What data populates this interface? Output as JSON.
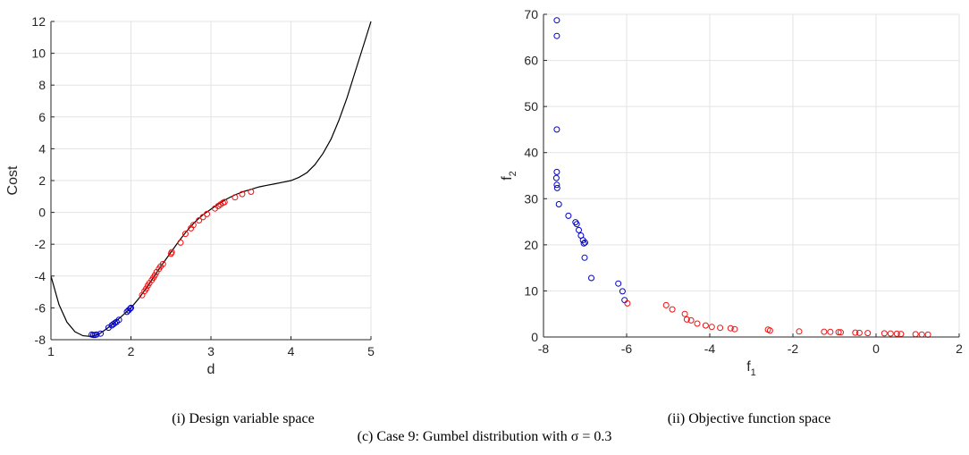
{
  "captions": {
    "left": "(i) Design variable space",
    "right": "(ii) Objective function space",
    "main": "(c) Case 9: Gumbel distribution with σ = 0.3"
  },
  "colors": {
    "blue": "#0000cc",
    "red": "#ee1111",
    "curve": "#000000",
    "grid": "#e3e3e3"
  },
  "chart_data": [
    {
      "type": "line",
      "title": "",
      "xlabel": "d",
      "ylabel": "Cost",
      "xlim": [
        1,
        5
      ],
      "ylim": [
        -8,
        12
      ],
      "xticks": [
        1,
        2,
        3,
        4,
        5
      ],
      "yticks": [
        -8,
        -6,
        -4,
        -2,
        0,
        2,
        4,
        6,
        8,
        10,
        12
      ],
      "grid": true,
      "curve": {
        "x": [
          1.0,
          1.1,
          1.2,
          1.3,
          1.4,
          1.5,
          1.6,
          1.7,
          1.8,
          1.9,
          2.0,
          2.1,
          2.2,
          2.3,
          2.4,
          2.5,
          2.6,
          2.7,
          2.8,
          2.9,
          3.0,
          3.1,
          3.2,
          3.3,
          3.4,
          3.5,
          3.6,
          3.7,
          3.8,
          3.9,
          4.0,
          4.1,
          4.2,
          4.3,
          4.4,
          4.5,
          4.6,
          4.7,
          4.8,
          4.9,
          5.0
        ],
        "y": [
          -4.0,
          -5.8,
          -6.9,
          -7.5,
          -7.75,
          -7.8,
          -7.65,
          -7.3,
          -6.9,
          -6.45,
          -6.0,
          -5.4,
          -4.7,
          -3.95,
          -3.2,
          -2.5,
          -1.8,
          -1.15,
          -0.6,
          -0.15,
          0.2,
          0.55,
          0.85,
          1.1,
          1.3,
          1.45,
          1.6,
          1.7,
          1.8,
          1.9,
          2.0,
          2.2,
          2.5,
          3.0,
          3.7,
          4.6,
          5.8,
          7.2,
          8.8,
          10.4,
          12.0
        ]
      },
      "series": [
        {
          "color": "blue",
          "marker": "circle",
          "x": [
            1.51,
            1.53,
            1.55,
            1.57,
            1.62,
            1.72,
            1.76,
            1.78,
            1.8,
            1.82,
            1.85,
            1.95,
            1.97,
            1.99,
            2.0
          ],
          "y": [
            -7.68,
            -7.7,
            -7.7,
            -7.68,
            -7.62,
            -7.25,
            -7.1,
            -7.02,
            -6.95,
            -6.88,
            -6.75,
            -6.25,
            -6.15,
            -6.05,
            -6.0
          ]
        },
        {
          "color": "red",
          "marker": "circle",
          "x": [
            2.14,
            2.17,
            2.19,
            2.21,
            2.23,
            2.26,
            2.28,
            2.3,
            2.32,
            2.35,
            2.37,
            2.4,
            2.5,
            2.51,
            2.62,
            2.68,
            2.75,
            2.78,
            2.85,
            2.9,
            2.95,
            3.05,
            3.09,
            3.12,
            3.15,
            3.17,
            3.3,
            3.39,
            3.5
          ],
          "y": [
            -5.2,
            -4.95,
            -4.8,
            -4.6,
            -4.45,
            -4.25,
            -4.1,
            -3.95,
            -3.75,
            -3.55,
            -3.4,
            -3.25,
            -2.6,
            -2.5,
            -1.9,
            -1.35,
            -1.0,
            -0.8,
            -0.5,
            -0.3,
            -0.1,
            0.25,
            0.4,
            0.5,
            0.6,
            0.65,
            0.95,
            1.15,
            1.3
          ]
        }
      ]
    },
    {
      "type": "scatter",
      "title": "",
      "xlabel": "f",
      "xlabel_sub": "1",
      "ylabel": "f",
      "ylabel_sub": "2",
      "xlim": [
        -8,
        2
      ],
      "ylim": [
        0,
        70
      ],
      "xticks": [
        -8,
        -6,
        -4,
        -2,
        0,
        2
      ],
      "yticks": [
        0,
        10,
        20,
        30,
        40,
        50,
        60,
        70
      ],
      "grid": true,
      "series": [
        {
          "color": "blue",
          "marker": "circle",
          "x": [
            -7.68,
            -7.68,
            -7.68,
            -7.68,
            -7.69,
            -7.68,
            -7.67,
            -7.63,
            -7.4,
            -7.23,
            -7.2,
            -7.15,
            -7.1,
            -7.05,
            -7.03,
            -7.01,
            -7.0,
            -6.85,
            -6.2,
            -6.1,
            -6.05
          ],
          "y": [
            68.7,
            65.3,
            45.0,
            35.8,
            34.5,
            33.0,
            32.3,
            28.8,
            26.3,
            24.9,
            24.5,
            23.2,
            22.0,
            21.0,
            20.3,
            17.2,
            20.5,
            12.8,
            11.6,
            9.9,
            8.0
          ]
        },
        {
          "color": "red",
          "marker": "circle",
          "x": [
            -5.98,
            -5.05,
            -4.9,
            -4.6,
            -4.55,
            -4.45,
            -4.3,
            -4.1,
            -3.95,
            -3.75,
            -3.5,
            -3.4,
            -2.6,
            -2.55,
            -1.85,
            -1.25,
            -1.1,
            -0.9,
            -0.85,
            -0.5,
            -0.4,
            -0.2,
            0.2,
            0.35,
            0.5,
            0.6,
            0.95,
            1.1,
            1.25
          ],
          "y": [
            7.3,
            6.9,
            6.0,
            5.0,
            3.8,
            3.6,
            2.9,
            2.5,
            2.2,
            2.0,
            1.9,
            1.7,
            1.6,
            1.4,
            1.2,
            1.15,
            1.1,
            1.05,
            1.0,
            0.95,
            0.9,
            0.85,
            0.8,
            0.75,
            0.7,
            0.65,
            0.6,
            0.55,
            0.5
          ]
        }
      ]
    }
  ]
}
